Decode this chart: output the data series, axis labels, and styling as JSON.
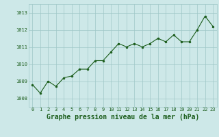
{
  "x": [
    0,
    1,
    2,
    3,
    4,
    5,
    6,
    7,
    8,
    9,
    10,
    11,
    12,
    13,
    14,
    15,
    16,
    17,
    18,
    19,
    20,
    21,
    22,
    23
  ],
  "y": [
    1008.8,
    1008.3,
    1009.0,
    1008.7,
    1009.2,
    1009.3,
    1009.7,
    1009.7,
    1010.2,
    1010.2,
    1010.7,
    1011.2,
    1011.0,
    1011.2,
    1011.0,
    1011.2,
    1011.5,
    1011.3,
    1011.7,
    1011.3,
    1011.3,
    1012.0,
    1012.8,
    1012.2
  ],
  "ylim": [
    1007.5,
    1013.5
  ],
  "yticks": [
    1008,
    1009,
    1010,
    1011,
    1012,
    1013
  ],
  "xticks": [
    0,
    1,
    2,
    3,
    4,
    5,
    6,
    7,
    8,
    9,
    10,
    11,
    12,
    13,
    14,
    15,
    16,
    17,
    18,
    19,
    20,
    21,
    22,
    23
  ],
  "line_color": "#1a5c1a",
  "marker_color": "#1a5c1a",
  "bg_color": "#cde8e8",
  "grid_color": "#a0c8c8",
  "xlabel": "Graphe pression niveau de la mer (hPa)",
  "label_color": "#1a5c1a",
  "tick_fontsize": 5.0,
  "xlabel_fontsize": 7.0,
  "xlim": [
    -0.5,
    23.5
  ]
}
